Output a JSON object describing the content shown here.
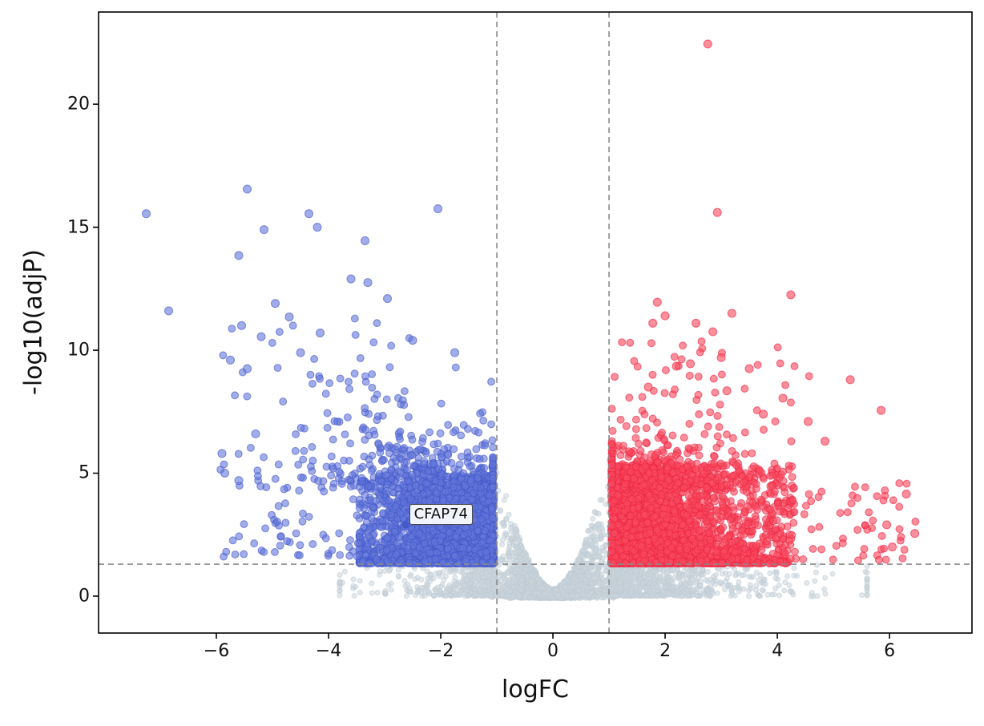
{
  "chart_data": {
    "type": "scatter",
    "subtype": "volcano-plot",
    "title": "",
    "xlabel": "logFC",
    "ylabel": "-log10(adjP)",
    "xlim": [
      -8.1,
      7.47
    ],
    "ylim": [
      -1.5,
      23.75
    ],
    "xticks": {
      "values": [
        -6,
        -4,
        -2,
        0,
        2,
        4,
        6
      ],
      "labels": [
        "−6",
        "−4",
        "−2",
        "0",
        "2",
        "4",
        "6"
      ]
    },
    "yticks": {
      "values": [
        0,
        5,
        10,
        15,
        20
      ],
      "labels": [
        "0",
        "5",
        "10",
        "15",
        "20"
      ]
    },
    "grid": false,
    "legend": false,
    "threshold_lines": {
      "vertical_x": [
        -1,
        1
      ],
      "horizontal_y": 1.3,
      "style": "dashed",
      "color": "#8a8a8a"
    },
    "annotation": {
      "label": "CFAP74",
      "x": -2.62,
      "y": 2.9
    },
    "seed": 1337,
    "series": [
      {
        "name": "not-significant",
        "color": "#cbd5dd",
        "edge": "#bfcbd4",
        "opacity": 0.55,
        "points": []
      },
      {
        "name": "down-regulated",
        "color": "#6377da",
        "edge": "#4257c8",
        "opacity": 0.6,
        "points": [
          [
            -7.25,
            15.55
          ],
          [
            -6.85,
            11.6
          ],
          [
            -5.45,
            16.55
          ],
          [
            -5.15,
            14.9
          ],
          [
            -5.6,
            13.85
          ],
          [
            -4.35,
            15.55
          ],
          [
            -4.2,
            15.0
          ],
          [
            -2.05,
            15.75
          ],
          [
            -3.35,
            14.45
          ],
          [
            -3.6,
            12.9
          ],
          [
            -3.3,
            12.75
          ],
          [
            -4.95,
            11.9
          ],
          [
            -4.7,
            11.35
          ],
          [
            -5.55,
            11.0
          ],
          [
            -5.2,
            10.55
          ],
          [
            -4.15,
            10.7
          ],
          [
            -5.75,
            9.6
          ],
          [
            -5.45,
            9.25
          ],
          [
            -2.95,
            12.1
          ],
          [
            -4.5,
            9.9
          ],
          [
            -5.9,
            5.8
          ],
          [
            -5.85,
            5.0
          ],
          [
            -5.6,
            4.7
          ],
          [
            -5.3,
            6.6
          ],
          [
            -2.5,
            10.4
          ],
          [
            -1.75,
            9.9
          ]
        ]
      },
      {
        "name": "up-regulated",
        "color": "#f94b60",
        "edge": "#ee2644",
        "opacity": 0.62,
        "points": [
          [
            2.76,
            22.45
          ],
          [
            2.93,
            15.6
          ],
          [
            4.24,
            12.25
          ],
          [
            1.86,
            11.95
          ],
          [
            2.0,
            11.4
          ],
          [
            1.78,
            11.1
          ],
          [
            2.55,
            11.1
          ],
          [
            3.19,
            11.5
          ],
          [
            2.85,
            10.75
          ],
          [
            3.0,
            9.7
          ],
          [
            2.45,
            9.45
          ],
          [
            2.2,
            9.35
          ],
          [
            3.5,
            9.25
          ],
          [
            1.7,
            8.5
          ],
          [
            3.1,
            8.35
          ],
          [
            5.3,
            8.8
          ],
          [
            5.85,
            7.55
          ],
          [
            4.55,
            7.1
          ],
          [
            6.3,
            4.15
          ],
          [
            6.45,
            2.55
          ],
          [
            5.95,
            2.9
          ],
          [
            6.05,
            2.0
          ],
          [
            4.85,
            6.3
          ],
          [
            4.1,
            8.05
          ],
          [
            3.75,
            7.4
          ]
        ]
      }
    ],
    "clusters": [
      {
        "series": 0,
        "type": "vee",
        "n": 3200,
        "xSigma": 0.48,
        "xClip": 1.08,
        "yBase": 0.22,
        "yEnvScale": 5.3,
        "yEnvPow": 1.7,
        "yPow": 2.2
      },
      {
        "series": 0,
        "type": "wing",
        "n": 430,
        "side": -1,
        "xStart": 1.0,
        "xExpMean": 0.72,
        "xMax": 3.8,
        "yMax": 1.28,
        "yPow": 1.6
      },
      {
        "series": 0,
        "type": "wing",
        "n": 830,
        "side": 1,
        "xStart": 1.0,
        "xExpMean": 1.05,
        "xMax": 5.6,
        "yMax": 1.28,
        "yPow": 1.6
      },
      {
        "series": 1,
        "type": "block",
        "n": 2300,
        "side": -1,
        "xStart": 1.05,
        "xSigma": 0.9,
        "xMax": 3.45,
        "uniformFrac": 0.45,
        "uniformPow": 1.25,
        "yBase": 1.33,
        "yScale": 3.6,
        "yPow": 2.0
      },
      {
        "series": 1,
        "type": "normal",
        "n": 310,
        "xMean": -2.35,
        "xSigma": 0.95,
        "xMin": -6.0,
        "xMax": -1.07,
        "yBase": 4.4,
        "yAbsSigma": 1.15
      },
      {
        "series": 1,
        "type": "uniform",
        "n": 55,
        "xMean": -3.6,
        "xSigma": 1.15,
        "xMin": -6.0,
        "xMax": -1.1,
        "yMin": 6.5,
        "yMax": 11.3
      },
      {
        "series": 1,
        "type": "lowspread",
        "n": 70,
        "xMin": -5.95,
        "xMax": -3.4,
        "yBase": 1.6,
        "yScale": 3.8,
        "yPow": 1.5
      },
      {
        "series": 2,
        "type": "block",
        "n": 2750,
        "side": 1,
        "xStart": 1.04,
        "xSigma": 0.95,
        "xMax": 4.3,
        "uniformFrac": 0.42,
        "uniformPow": 1.45,
        "yBase": 1.33,
        "yScale": 4.0,
        "yPow": 2.0
      },
      {
        "series": 2,
        "type": "normal",
        "n": 330,
        "xMean": 1.95,
        "xSigma": 0.85,
        "xMin": 1.05,
        "xMax": 5.0,
        "yBase": 4.4,
        "yAbsSigma": 1.05
      },
      {
        "series": 2,
        "type": "uniform",
        "n": 48,
        "xMean": 2.6,
        "xSigma": 1.0,
        "xMin": 1.1,
        "xMax": 5.6,
        "yMin": 6.4,
        "yMax": 10.4
      },
      {
        "series": 2,
        "type": "lowspread",
        "n": 55,
        "xMin": 4.3,
        "xMax": 6.55,
        "yBase": 1.45,
        "yScale": 3.2,
        "yPow": 1.6
      }
    ]
  }
}
